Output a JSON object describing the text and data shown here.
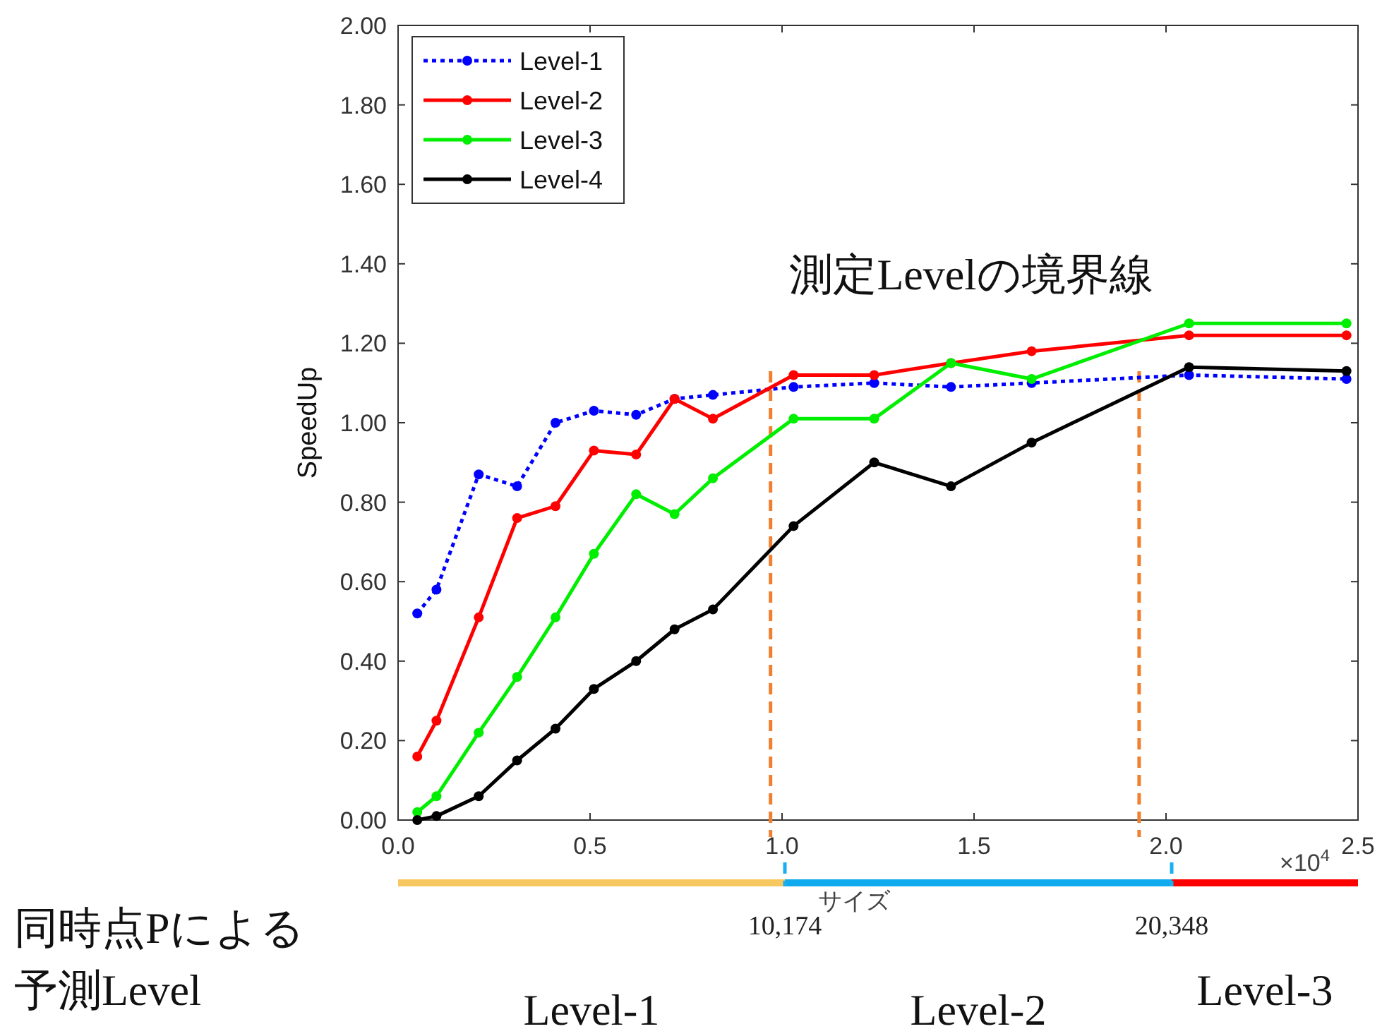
{
  "chart_data": {
    "type": "line",
    "xlabel": "サイズ",
    "ylabel": "SpeedUp",
    "x": [
      0.05,
      0.1,
      0.21,
      0.31,
      0.41,
      0.51,
      0.62,
      0.72,
      0.82,
      1.03,
      1.24,
      1.44,
      1.65,
      2.06,
      2.47
    ],
    "xlim": [
      0,
      2.5
    ],
    "xticks": [
      {
        "value": 0,
        "label": "0.0"
      },
      0.5,
      {
        "value": 1,
        "label": "1.0"
      },
      1.5,
      {
        "value": 2,
        "label": "2.0"
      },
      2.5
    ],
    "ylim": [
      0,
      2
    ],
    "yticks": [
      {
        "value": 0,
        "label": "0.00"
      },
      {
        "value": 0.2,
        "label": "0.20"
      },
      {
        "value": 0.4,
        "label": "0.40"
      },
      {
        "value": 0.6,
        "label": "0.60"
      },
      {
        "value": 0.8,
        "label": "0.80"
      },
      {
        "value": 1,
        "label": "1.00"
      },
      {
        "value": 1.2,
        "label": "1.20"
      },
      {
        "value": 1.4,
        "label": "1.40"
      },
      {
        "value": 1.6,
        "label": "1.60"
      },
      {
        "value": 1.8,
        "label": "1.80"
      },
      {
        "value": 2,
        "label": "2.00"
      }
    ],
    "series": [
      {
        "name": "Level-1",
        "color": "#0000ff",
        "line_style": "dotted",
        "values": [
          0.52,
          0.58,
          0.87,
          0.84,
          1.0,
          1.03,
          1.02,
          1.06,
          1.07,
          1.09,
          1.1,
          1.09,
          1.1,
          1.12,
          1.11
        ]
      },
      {
        "name": "Level-2",
        "color": "#ff0000",
        "line_style": "solid",
        "values": [
          0.16,
          0.25,
          0.51,
          0.76,
          0.79,
          0.93,
          0.92,
          1.06,
          1.01,
          1.12,
          1.12,
          1.15,
          1.18,
          1.22,
          1.22
        ]
      },
      {
        "name": "Level-3",
        "color": "#00ee00",
        "line_style": "solid",
        "values": [
          0.02,
          0.06,
          0.22,
          0.36,
          0.51,
          0.67,
          0.82,
          0.77,
          0.86,
          1.01,
          1.01,
          1.15,
          1.11,
          1.25,
          1.25
        ]
      },
      {
        "name": "Level-4",
        "color": "#000000",
        "line_style": "solid",
        "values": [
          0.0,
          0.01,
          0.06,
          0.15,
          0.23,
          0.33,
          0.4,
          0.48,
          0.53,
          0.74,
          0.9,
          0.84,
          0.95,
          1.14,
          1.13
        ]
      }
    ],
    "marker": "circle",
    "legend": "top left",
    "grid": false,
    "ref_lines": [
      {
        "axis": "x",
        "value": 0.97,
        "color": "#f08030",
        "line_style": "dashed"
      },
      {
        "axis": "x",
        "value": 1.93,
        "color": "#f08030",
        "line_style": "dashed"
      }
    ],
    "annotations": [
      "測定Levelの境界線",
      "同時点Pによる",
      "予測Level",
      "×10$^{4}$",
      "Level-1",
      "Level-2",
      "Level-3",
      "10,174",
      "20,348"
    ]
  }
}
